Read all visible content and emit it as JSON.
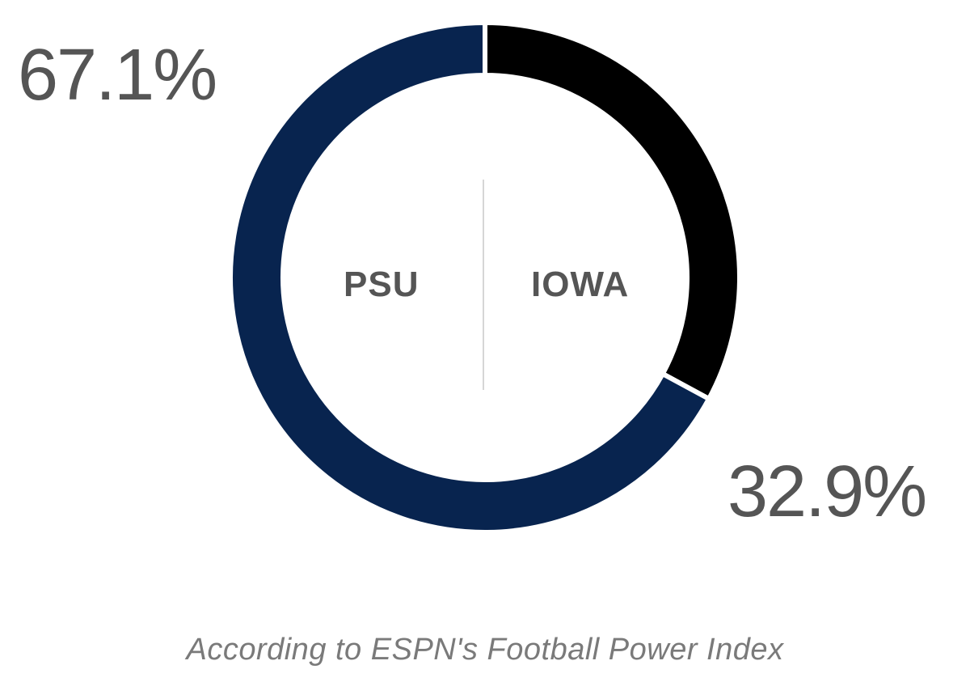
{
  "chart_data": {
    "type": "pie",
    "style": "donut",
    "categories": [
      "PSU",
      "IOWA"
    ],
    "values": [
      67.1,
      32.9
    ],
    "value_labels": [
      "67.1%",
      "32.9%"
    ],
    "colors": [
      "#08244f",
      "#000000"
    ],
    "center_labels": [
      "PSU",
      "IOWA"
    ],
    "caption": "According to ESPN's Football Power Index",
    "legend": "none"
  }
}
